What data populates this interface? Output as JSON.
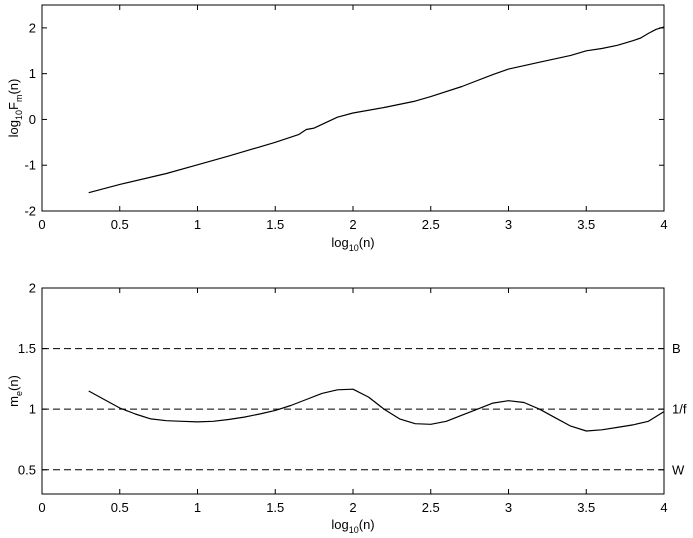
{
  "chart_data": [
    {
      "type": "line",
      "xlim": [
        0,
        4
      ],
      "ylim": [
        -2,
        2.5
      ],
      "xticks": [
        "0",
        "0.5",
        "1",
        "1.5",
        "2",
        "2.5",
        "3",
        "3.5",
        "4"
      ],
      "yticks": [
        "-2",
        "-1",
        "0",
        "1",
        "2"
      ],
      "xlabel": {
        "base": "log",
        "sub": "10",
        "tail": "(n)"
      },
      "ylabel": {
        "base": "log",
        "sub1": "10",
        "mid": "F",
        "sub2": "m",
        "tail": "(n)"
      },
      "grid": false,
      "series": [
        {
          "color": "#000000",
          "x": [
            0.3,
            0.5,
            0.8,
            1.0,
            1.2,
            1.5,
            1.65,
            1.7,
            1.75,
            1.9,
            2.0,
            2.2,
            2.4,
            2.5,
            2.7,
            2.9,
            3.0,
            3.2,
            3.4,
            3.5,
            3.6,
            3.7,
            3.8,
            3.85,
            3.9,
            3.95,
            4.0
          ],
          "y": [
            -1.6,
            -1.42,
            -1.18,
            -0.99,
            -0.8,
            -0.5,
            -0.33,
            -0.22,
            -0.19,
            0.05,
            0.14,
            0.26,
            0.4,
            0.5,
            0.72,
            0.98,
            1.1,
            1.25,
            1.4,
            1.5,
            1.55,
            1.62,
            1.72,
            1.78,
            1.88,
            1.97,
            2.02
          ]
        }
      ]
    },
    {
      "type": "line",
      "xlim": [
        0,
        4
      ],
      "ylim": [
        0.3,
        2
      ],
      "xticks": [
        "0",
        "0.5",
        "1",
        "1.5",
        "2",
        "2.5",
        "3",
        "3.5",
        "4"
      ],
      "yticks": [
        "0.5",
        "1",
        "1.5",
        "2"
      ],
      "xlabel": {
        "base": "log",
        "sub": "10",
        "tail": "(n)"
      },
      "ylabel": {
        "base": "m",
        "sub": "e",
        "tail": "(n)"
      },
      "grid": false,
      "reference_lines": [
        {
          "y": 1.5,
          "label": "B"
        },
        {
          "y": 1.0,
          "label": "1/f"
        },
        {
          "y": 0.5,
          "label": "W"
        }
      ],
      "series": [
        {
          "color": "#000000",
          "x": [
            0.3,
            0.4,
            0.5,
            0.6,
            0.7,
            0.8,
            0.9,
            1.0,
            1.1,
            1.2,
            1.3,
            1.4,
            1.5,
            1.6,
            1.7,
            1.8,
            1.9,
            2.0,
            2.1,
            2.2,
            2.3,
            2.4,
            2.5,
            2.6,
            2.7,
            2.8,
            2.9,
            3.0,
            3.1,
            3.2,
            3.3,
            3.4,
            3.5,
            3.6,
            3.7,
            3.8,
            3.9,
            4.0
          ],
          "y": [
            1.15,
            1.08,
            1.01,
            0.96,
            0.92,
            0.905,
            0.9,
            0.895,
            0.9,
            0.915,
            0.935,
            0.96,
            0.99,
            1.03,
            1.08,
            1.13,
            1.16,
            1.165,
            1.1,
            1.0,
            0.92,
            0.88,
            0.875,
            0.9,
            0.95,
            1.0,
            1.05,
            1.07,
            1.055,
            1.0,
            0.93,
            0.86,
            0.82,
            0.83,
            0.85,
            0.87,
            0.9,
            0.98
          ]
        }
      ]
    }
  ]
}
